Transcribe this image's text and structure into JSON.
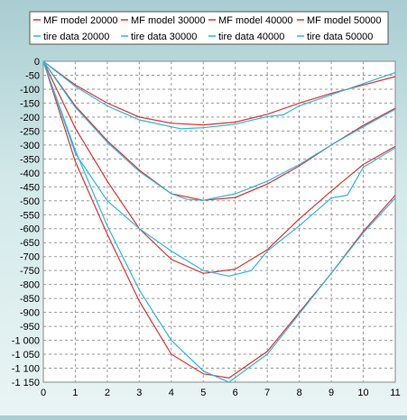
{
  "chart_data": {
    "type": "line",
    "title": "",
    "xlabel": "",
    "ylabel": "",
    "xlim": [
      0,
      11
    ],
    "ylim": [
      -1150,
      0
    ],
    "x_ticks": [
      "0",
      "1",
      "2",
      "3",
      "4",
      "5",
      "6",
      "7",
      "8",
      "9",
      "10",
      "11"
    ],
    "y_ticks": [
      "0",
      "-50",
      "-100",
      "-150",
      "-200",
      "-250",
      "-300",
      "-350",
      "-400",
      "-450",
      "-500",
      "-550",
      "-600",
      "-650",
      "-700",
      "-750",
      "-800",
      "-850",
      "-900",
      "-950",
      "-1 000",
      "-1 050",
      "-1 100",
      "-1 150"
    ],
    "grid": true,
    "legend_position": "top",
    "background_color": "#ffffff",
    "series": [
      {
        "name": "MF model 20000",
        "color": "#e8302a",
        "x": [
          0,
          1,
          2,
          3,
          4,
          5,
          6,
          7,
          8,
          9,
          10,
          11
        ],
        "y": [
          0,
          -85,
          -150,
          -200,
          -222,
          -228,
          -218,
          -190,
          -150,
          -115,
          -85,
          -55
        ]
      },
      {
        "name": "MF model 30000",
        "color": "#e8302a",
        "x": [
          0,
          1,
          2,
          3,
          4,
          5,
          6,
          7,
          8,
          9,
          10,
          11
        ],
        "y": [
          0,
          -160,
          -285,
          -390,
          -475,
          -498,
          -488,
          -440,
          -375,
          -300,
          -230,
          -168
        ]
      },
      {
        "name": "MF model 40000",
        "color": "#e8302a",
        "x": [
          0,
          1,
          2,
          3,
          4,
          5,
          6,
          7,
          8,
          9,
          10,
          11
        ],
        "y": [
          0,
          -240,
          -430,
          -600,
          -710,
          -760,
          -745,
          -675,
          -565,
          -465,
          -370,
          -305
        ]
      },
      {
        "name": "MF model 50000",
        "color": "#e8302a",
        "x": [
          0,
          1,
          2,
          3,
          4,
          5,
          5.8,
          7,
          8,
          9,
          10,
          11
        ],
        "y": [
          0,
          -360,
          -620,
          -860,
          -1050,
          -1120,
          -1135,
          -1040,
          -900,
          -760,
          -610,
          -480
        ]
      },
      {
        "name": "tire data 20000",
        "color": "#2ab8e6",
        "x": [
          0,
          1,
          2,
          3,
          4,
          4.3,
          5,
          6,
          7,
          7.5,
          8,
          9,
          10,
          11
        ],
        "y": [
          0,
          -90,
          -160,
          -210,
          -235,
          -242,
          -238,
          -225,
          -198,
          -192,
          -160,
          -120,
          -80,
          -40
        ]
      },
      {
        "name": "tire data 30000",
        "color": "#2ab8e6",
        "x": [
          0,
          1,
          2,
          3,
          4,
          4.5,
          5,
          6,
          7,
          8,
          9,
          10,
          11
        ],
        "y": [
          0,
          -165,
          -290,
          -395,
          -475,
          -495,
          -498,
          -475,
          -430,
          -370,
          -300,
          -235,
          -172
        ]
      },
      {
        "name": "tire data 40000",
        "color": "#2ab8e6",
        "x": [
          0,
          1,
          2,
          3,
          4,
          5,
          5.8,
          6.5,
          7,
          8,
          9,
          9.5,
          10,
          11
        ],
        "y": [
          0,
          -330,
          -500,
          -600,
          -680,
          -750,
          -770,
          -750,
          -680,
          -590,
          -490,
          -480,
          -380,
          -310
        ]
      },
      {
        "name": "tire data 50000",
        "color": "#2ab8e6",
        "x": [
          0,
          1,
          2,
          3,
          4,
          5,
          5.8,
          7,
          8,
          9,
          10,
          11
        ],
        "y": [
          0,
          -320,
          -590,
          -820,
          -1000,
          -1110,
          -1150,
          -1050,
          -905,
          -760,
          -615,
          -490
        ]
      }
    ]
  }
}
